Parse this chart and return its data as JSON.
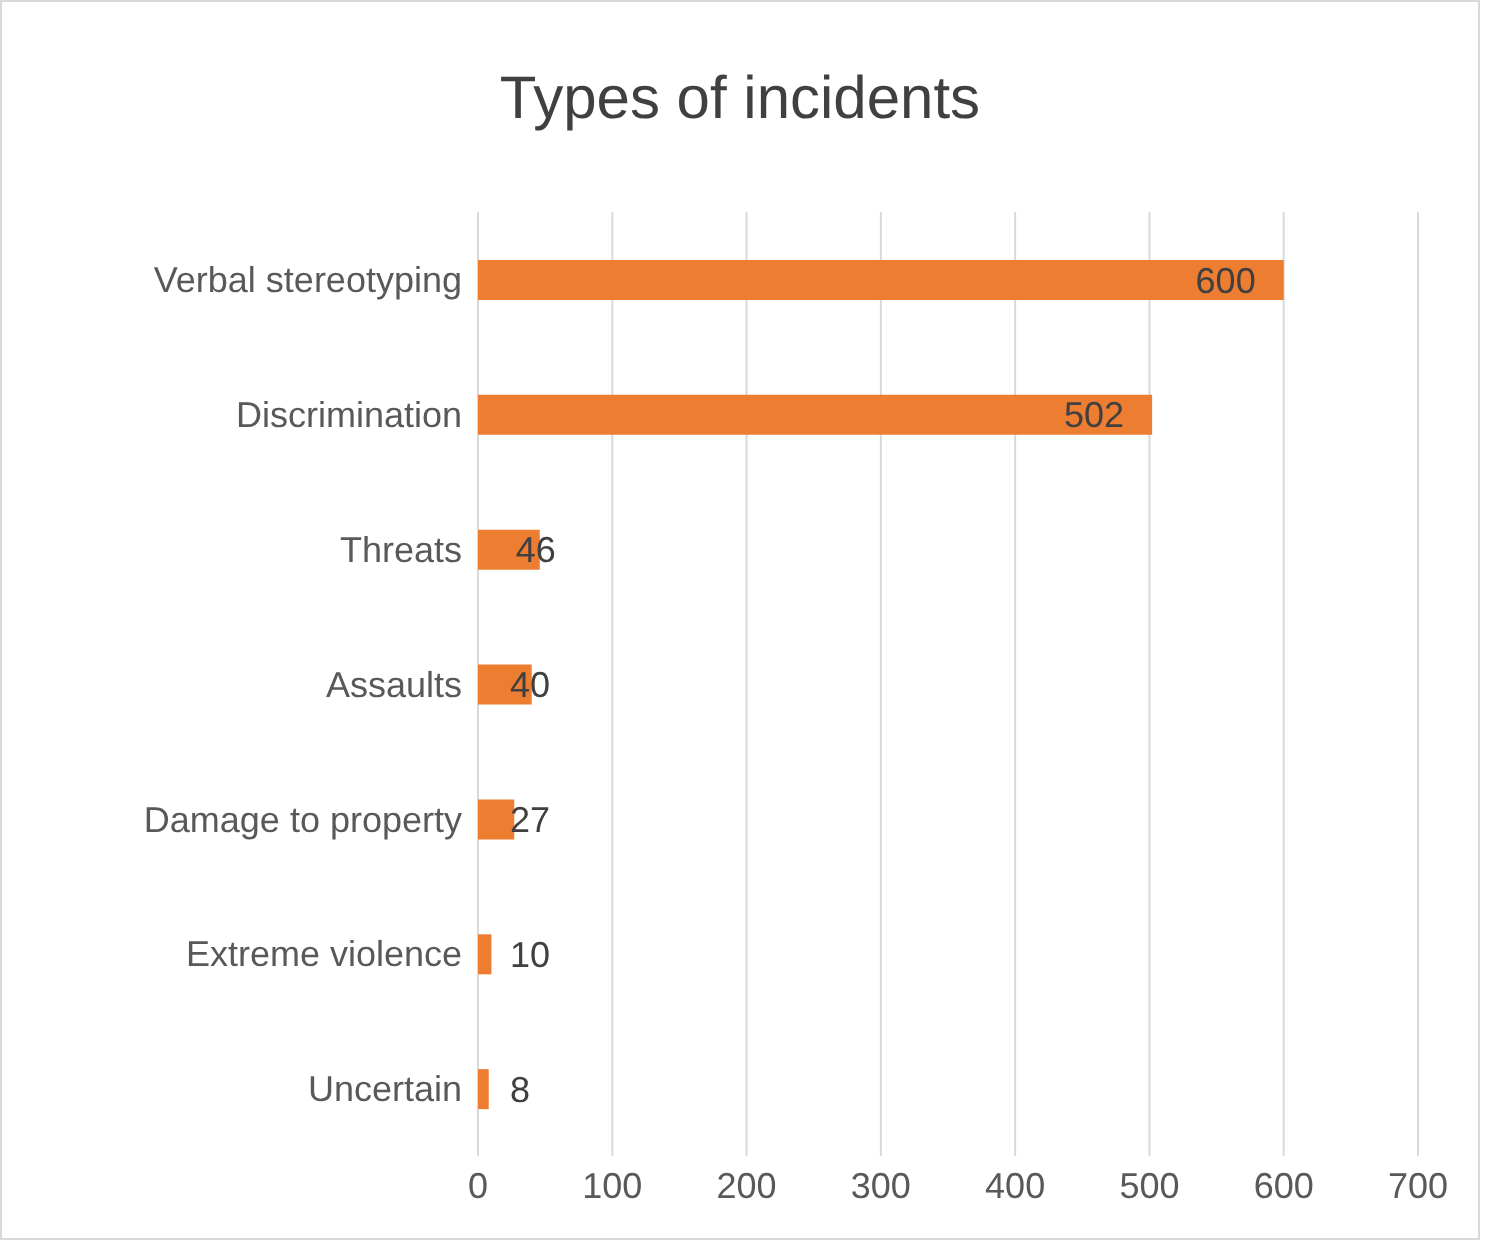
{
  "chart_data": {
    "type": "bar",
    "orientation": "horizontal",
    "title": "Types of incidents",
    "categories": [
      "Verbal stereotyping",
      "Discrimination",
      "Threats",
      "Assaults",
      "Damage to property",
      "Extreme violence",
      "Uncertain"
    ],
    "values": [
      600,
      502,
      46,
      40,
      27,
      10,
      8
    ],
    "color": "#ed7d31",
    "xlim": [
      0,
      700
    ],
    "xticks": [
      0,
      100,
      200,
      300,
      400,
      500,
      600,
      700
    ],
    "grid": "x",
    "data_labels": true
  }
}
